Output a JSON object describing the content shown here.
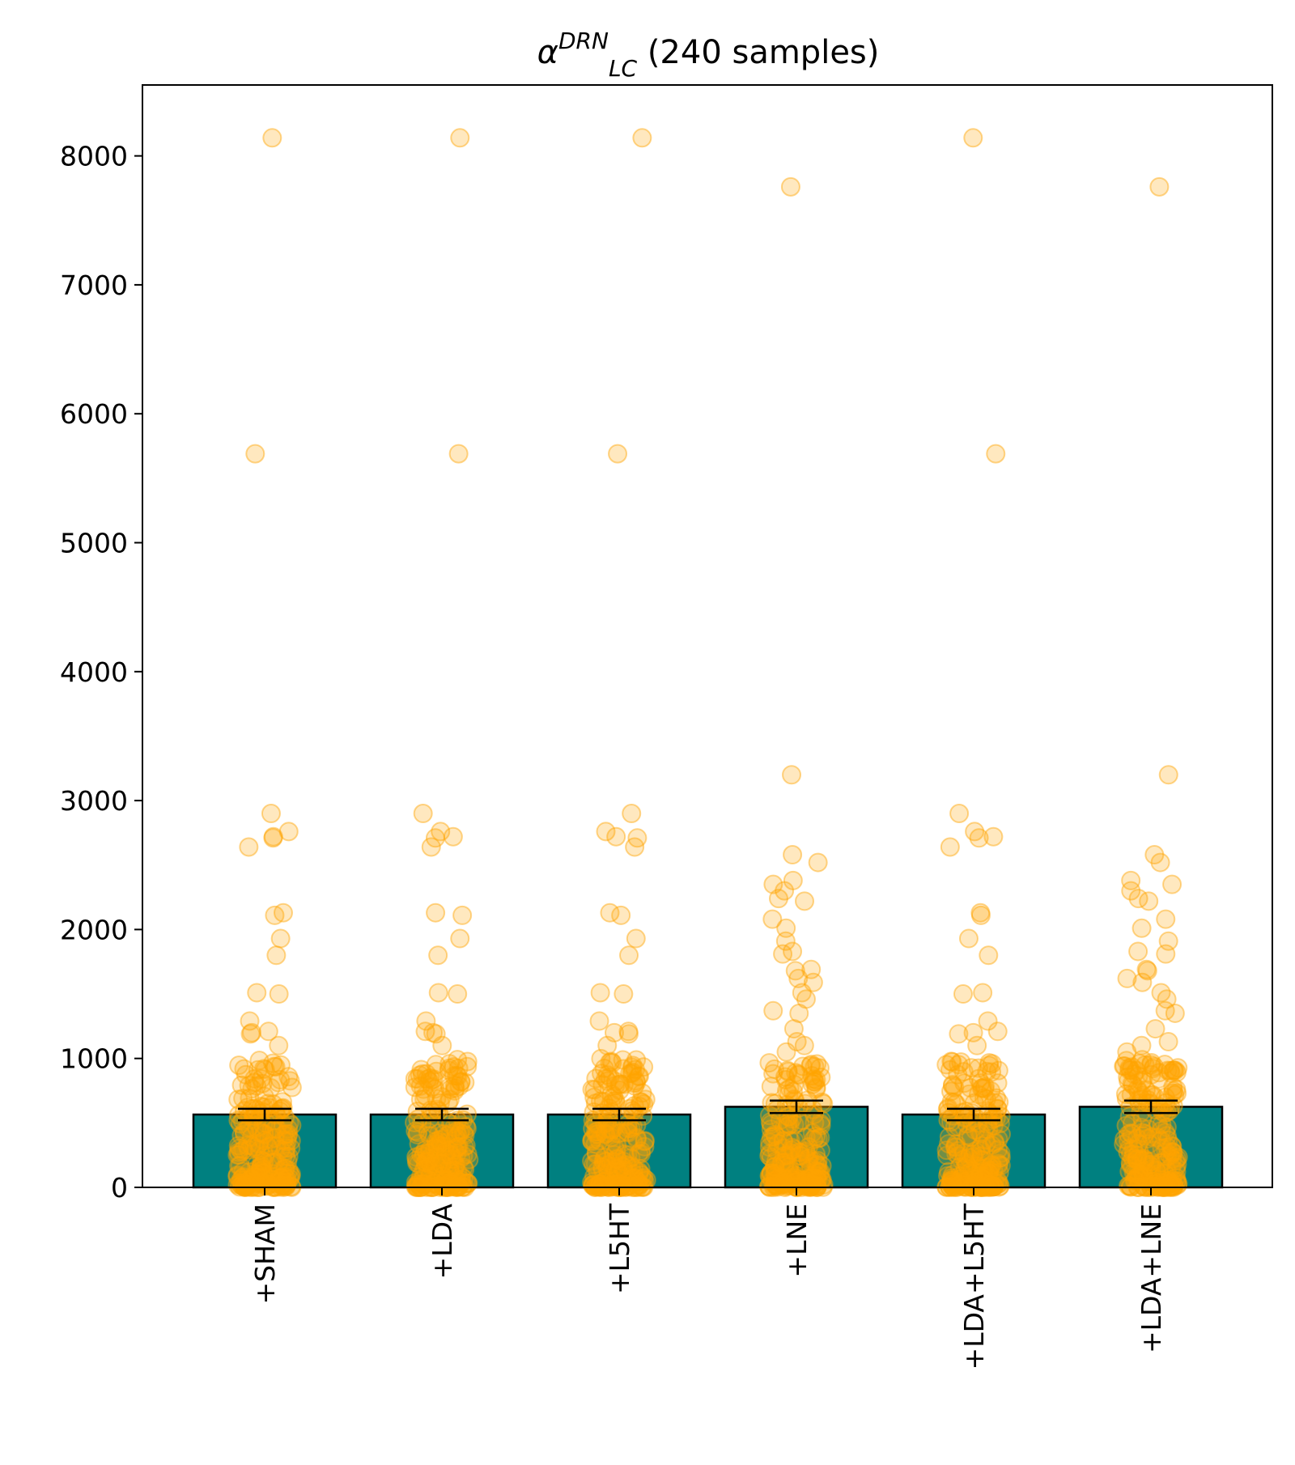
{
  "chart_data": {
    "type": "bar",
    "title": {
      "symbol": "α",
      "subscript": "LC",
      "superscript": "DRN",
      "suffix": " (240 samples)"
    },
    "xlabel": "",
    "ylabel": "",
    "categories": [
      "+SHAM",
      "+LDA",
      "+L5HT",
      "+LNE",
      "+LDA+L5HT",
      "+LDA+LNE"
    ],
    "values": [
      565,
      565,
      565,
      625,
      565,
      625
    ],
    "error": [
      45,
      45,
      45,
      48,
      45,
      48
    ],
    "ylim": [
      0,
      8550
    ],
    "yticks": [
      0,
      1000,
      2000,
      3000,
      4000,
      5000,
      6000,
      7000,
      8000
    ],
    "grid": false,
    "bar_color": "#008080",
    "point_color": "#FFA500",
    "points_per_category": 240,
    "outliers": [
      [
        8140,
        5690,
        2900,
        2760,
        2720,
        2710,
        2640,
        2130,
        2110,
        1930,
        1800,
        1510,
        1500,
        1290,
        1210,
        1200,
        1190,
        1100
      ],
      [
        8140,
        5690,
        2900,
        2760,
        2720,
        2710,
        2640,
        2130,
        2110,
        1930,
        1800,
        1510,
        1500,
        1290,
        1210,
        1200,
        1190,
        1100
      ],
      [
        8140,
        5690,
        2900,
        2760,
        2720,
        2710,
        2640,
        2130,
        2110,
        1930,
        1800,
        1510,
        1500,
        1290,
        1210,
        1200,
        1190,
        1100
      ],
      [
        7760,
        3200,
        2580,
        2520,
        2380,
        2350,
        2300,
        2240,
        2220,
        2080,
        2010,
        1910,
        1830,
        1810,
        1690,
        1680,
        1620,
        1590,
        1510,
        1460,
        1370,
        1350,
        1230,
        1130,
        1100,
        1050
      ],
      [
        8140,
        5690,
        2900,
        2760,
        2720,
        2710,
        2640,
        2130,
        2110,
        1930,
        1800,
        1510,
        1500,
        1290,
        1210,
        1200,
        1190,
        1100
      ],
      [
        7760,
        3200,
        2580,
        2520,
        2380,
        2350,
        2300,
        2240,
        2220,
        2080,
        2010,
        1910,
        1830,
        1810,
        1690,
        1680,
        1620,
        1590,
        1510,
        1460,
        1370,
        1350,
        1230,
        1130,
        1100,
        1050
      ]
    ]
  }
}
